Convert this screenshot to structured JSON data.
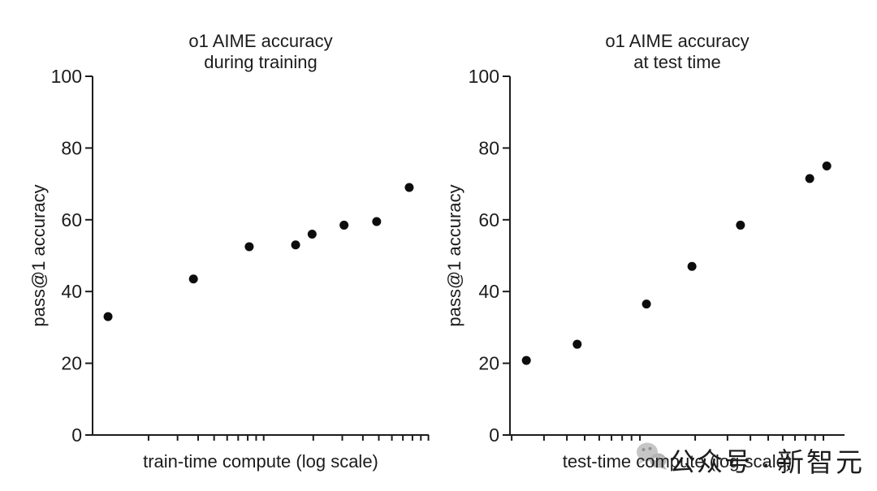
{
  "figure": {
    "background": "#ffffff",
    "text_color": "#1c1c1c",
    "axis_color": "#1c1c1c",
    "marker_color": "#0d0d0d"
  },
  "watermark": {
    "icon": "wechat-icon",
    "account_label": "公众号",
    "separator": "·",
    "brand": "新智元",
    "color": "#c4c4c4"
  },
  "chart_data": [
    {
      "type": "scatter",
      "title": "o1 AIME accuracy during training",
      "title_lines": [
        "o1 AIME accuracy",
        "during training"
      ],
      "xlabel": "train-time compute (log scale)",
      "ylabel": "pass@1 accuracy",
      "xscale": "log",
      "x_tick_labels": "none",
      "ylim": [
        0,
        100
      ],
      "y_ticks": [
        0,
        20,
        40,
        60,
        80,
        100
      ],
      "grid": false,
      "legend": "none",
      "x_log_ticks": {
        "offset_frac": 0.019,
        "decade_frac": 0.49,
        "decades": 2
      },
      "points": [
        {
          "x_frac": 0.046,
          "y": 33
        },
        {
          "x_frac": 0.3,
          "y": 43.5
        },
        {
          "x_frac": 0.466,
          "y": 52.5
        },
        {
          "x_frac": 0.604,
          "y": 53
        },
        {
          "x_frac": 0.653,
          "y": 56
        },
        {
          "x_frac": 0.748,
          "y": 58.5
        },
        {
          "x_frac": 0.845,
          "y": 59.5
        },
        {
          "x_frac": 0.942,
          "y": 69
        }
      ]
    },
    {
      "type": "scatter",
      "title": "o1 AIME accuracy at test time",
      "title_lines": [
        "o1 AIME accuracy",
        "at test time"
      ],
      "xlabel": "test-time compute (log scale)",
      "ylabel": "pass@1 accuracy",
      "xscale": "log",
      "x_tick_labels": "none",
      "ylim": [
        0,
        100
      ],
      "y_ticks": [
        0,
        20,
        40,
        60,
        80,
        100
      ],
      "grid": false,
      "legend": "none",
      "x_log_ticks": {
        "offset_frac": -0.16,
        "decade_frac": 0.5485,
        "decades": 2
      },
      "points": [
        {
          "x_frac": 0.049,
          "y": 20.8
        },
        {
          "x_frac": 0.201,
          "y": 25.3
        },
        {
          "x_frac": 0.408,
          "y": 36.5
        },
        {
          "x_frac": 0.544,
          "y": 47
        },
        {
          "x_frac": 0.689,
          "y": 58.5
        },
        {
          "x_frac": 0.896,
          "y": 71.5
        },
        {
          "x_frac": 0.947,
          "y": 75
        }
      ]
    }
  ]
}
